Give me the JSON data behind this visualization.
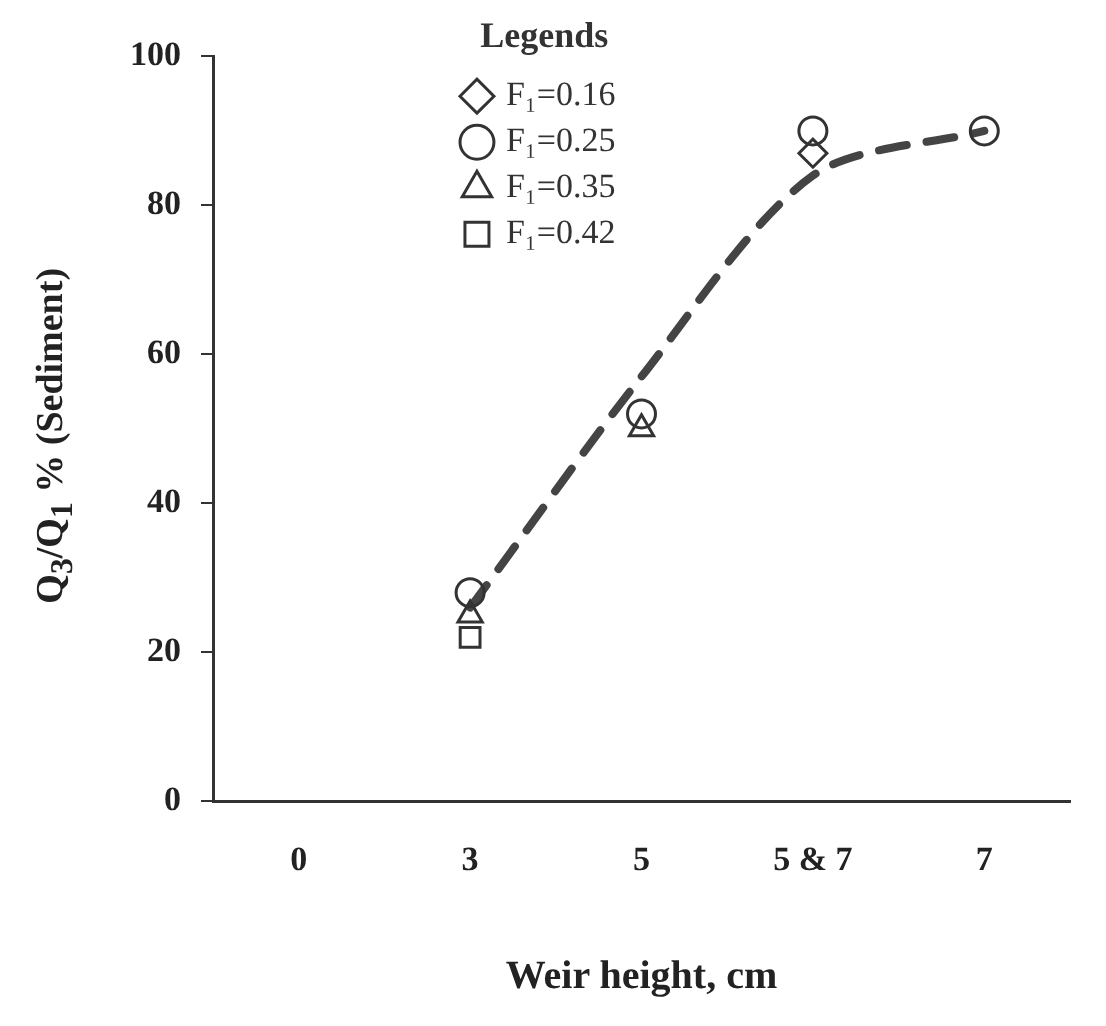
{
  "chart_data": {
    "type": "scatter",
    "xlabel": "Weir height, cm",
    "ylabel": "Q$_{3}$/Q$_{1}$ % (Sediment)",
    "legend_title": "Legends",
    "categories": [
      "0",
      "3",
      "5",
      "5 & 7",
      "7"
    ],
    "series": [
      {
        "name": "F₁=0.16",
        "color": "#333333",
        "marker": "diamond",
        "values": [
          null,
          null,
          null,
          87,
          null
        ]
      },
      {
        "name": "F₁=0.25",
        "color": "#333333",
        "marker": "circle",
        "values": [
          null,
          28,
          52,
          90,
          90
        ]
      },
      {
        "name": "F₁=0.35",
        "color": "#333333",
        "marker": "triangle",
        "values": [
          null,
          25,
          50,
          null,
          null
        ]
      },
      {
        "name": "F₁=0.42",
        "color": "#333333",
        "marker": "square",
        "values": [
          null,
          22,
          null,
          null,
          null
        ]
      },
      {
        "type": "line",
        "color": "#444444",
        "marker": "none",
        "line_style": "dashed",
        "values": [
          null,
          26,
          57,
          84,
          90
        ]
      }
    ],
    "ylim": [
      0,
      100
    ],
    "yticks": [
      0,
      20,
      40,
      60,
      80,
      100
    ],
    "grid": false,
    "legend": "top"
  }
}
